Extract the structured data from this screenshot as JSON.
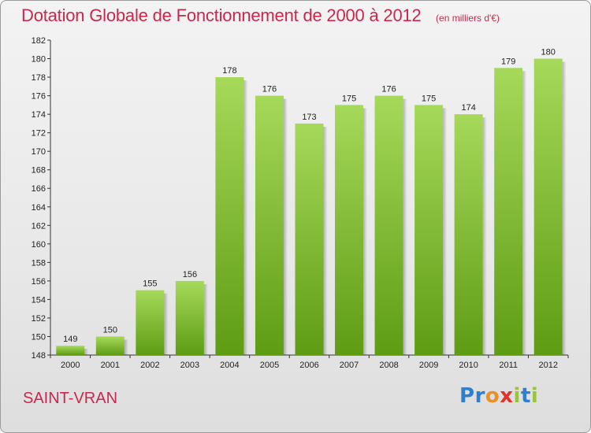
{
  "header": {
    "title": "Dotation Globale de Fonctionnement de 2000 à 2012",
    "unit": "(en milliers d'€)"
  },
  "footer": {
    "commune": "SAINT-VRAN",
    "logo": [
      "P",
      "r",
      "o",
      "x",
      "i",
      "t",
      "i"
    ],
    "logo_colors": [
      "#2f7fd0",
      "#2f7fd0",
      "#e8902a",
      "#e4322b",
      "#9cc43a",
      "#2f7fd0",
      "#9cc43a"
    ]
  },
  "colors": {
    "bar_light": "#a6d95a",
    "bar_dark": "#5e9c14",
    "title": "#c8284c"
  },
  "chart_data": {
    "type": "bar",
    "title": "Dotation Globale de Fonctionnement de 2000 à 2012",
    "xlabel": "",
    "ylabel": "",
    "categories": [
      "2000",
      "2001",
      "2002",
      "2003",
      "2004",
      "2005",
      "2006",
      "2007",
      "2008",
      "2009",
      "2010",
      "2011",
      "2012"
    ],
    "values": [
      149,
      150,
      155,
      156,
      178,
      176,
      173,
      175,
      176,
      175,
      174,
      179,
      180
    ],
    "ylim": [
      148,
      182
    ],
    "yticks": [
      148,
      150,
      152,
      154,
      156,
      158,
      160,
      162,
      164,
      166,
      168,
      170,
      172,
      174,
      176,
      178,
      180,
      182
    ],
    "grid": false,
    "legend": "none"
  }
}
